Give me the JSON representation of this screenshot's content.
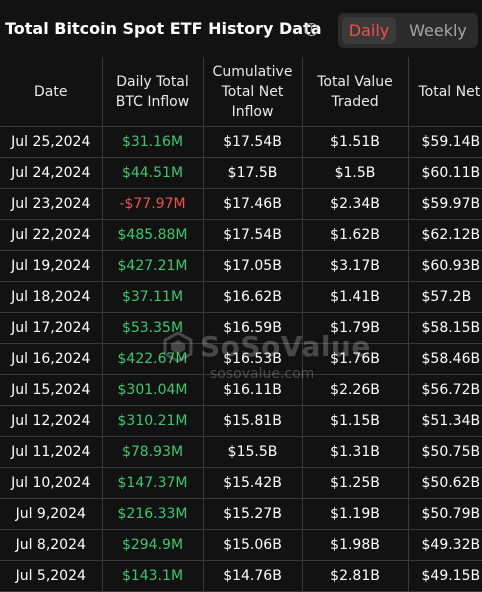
{
  "header": {
    "title": "Total Bitcoin Spot ETF History Data",
    "info_icon": "info-icon",
    "toggle": {
      "daily_label": "Daily",
      "weekly_label": "Weekly",
      "selected": "Daily"
    }
  },
  "colors": {
    "positive": "#3cc86e",
    "negative": "#f0504a",
    "background": "#121212",
    "accent": "#f0504a"
  },
  "table": {
    "headers": [
      "Date",
      "Daily Total BTC Inflow",
      "Cumulative Total Net Inflow",
      "Total Value Traded",
      "Total Net Assets"
    ],
    "rows": [
      {
        "date": "Jul 25,2024",
        "inflow": "$31.16M",
        "sign": "pos",
        "cumulative": "$17.54B",
        "traded": "$1.51B",
        "assets": "$59.14B"
      },
      {
        "date": "Jul 24,2024",
        "inflow": "$44.51M",
        "sign": "pos",
        "cumulative": "$17.5B",
        "traded": "$1.5B",
        "assets": "$60.11B"
      },
      {
        "date": "Jul 23,2024",
        "inflow": "-$77.97M",
        "sign": "neg",
        "cumulative": "$17.46B",
        "traded": "$2.34B",
        "assets": "$59.97B"
      },
      {
        "date": "Jul 22,2024",
        "inflow": "$485.88M",
        "sign": "pos",
        "cumulative": "$17.54B",
        "traded": "$1.62B",
        "assets": "$62.12B"
      },
      {
        "date": "Jul 19,2024",
        "inflow": "$427.21M",
        "sign": "pos",
        "cumulative": "$17.05B",
        "traded": "$3.17B",
        "assets": "$60.93B"
      },
      {
        "date": "Jul 18,2024",
        "inflow": "$37.11M",
        "sign": "pos",
        "cumulative": "$16.62B",
        "traded": "$1.41B",
        "assets": "$57.2B"
      },
      {
        "date": "Jul 17,2024",
        "inflow": "$53.35M",
        "sign": "pos",
        "cumulative": "$16.59B",
        "traded": "$1.79B",
        "assets": "$58.15B"
      },
      {
        "date": "Jul 16,2024",
        "inflow": "$422.67M",
        "sign": "pos",
        "cumulative": "$16.53B",
        "traded": "$1.76B",
        "assets": "$58.46B"
      },
      {
        "date": "Jul 15,2024",
        "inflow": "$301.04M",
        "sign": "pos",
        "cumulative": "$16.11B",
        "traded": "$2.26B",
        "assets": "$56.72B"
      },
      {
        "date": "Jul 12,2024",
        "inflow": "$310.21M",
        "sign": "pos",
        "cumulative": "$15.81B",
        "traded": "$1.15B",
        "assets": "$51.34B"
      },
      {
        "date": "Jul 11,2024",
        "inflow": "$78.93M",
        "sign": "pos",
        "cumulative": "$15.5B",
        "traded": "$1.31B",
        "assets": "$50.75B"
      },
      {
        "date": "Jul 10,2024",
        "inflow": "$147.37M",
        "sign": "pos",
        "cumulative": "$15.42B",
        "traded": "$1.25B",
        "assets": "$50.62B"
      },
      {
        "date": "Jul 9,2024",
        "inflow": "$216.33M",
        "sign": "pos",
        "cumulative": "$15.27B",
        "traded": "$1.19B",
        "assets": "$50.79B"
      },
      {
        "date": "Jul 8,2024",
        "inflow": "$294.9M",
        "sign": "pos",
        "cumulative": "$15.06B",
        "traded": "$1.98B",
        "assets": "$49.32B"
      },
      {
        "date": "Jul 5,2024",
        "inflow": "$143.1M",
        "sign": "pos",
        "cumulative": "$14.76B",
        "traded": "$2.81B",
        "assets": "$49.15B"
      }
    ]
  },
  "watermark": {
    "name": "SoSoValue",
    "url": "sosovalue.com"
  }
}
